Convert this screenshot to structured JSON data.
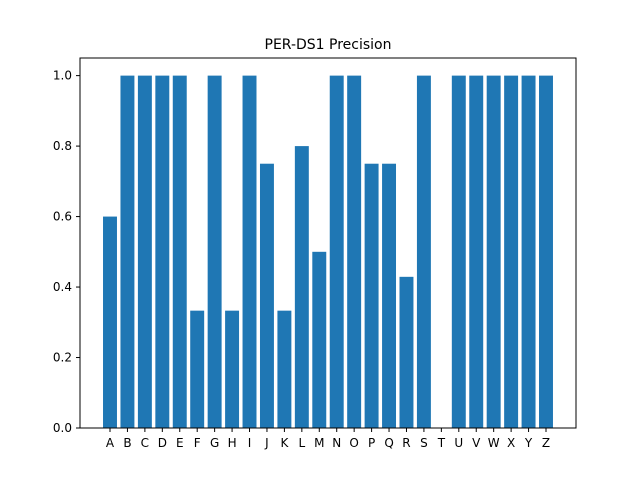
{
  "chart_data": {
    "type": "bar",
    "title": "PER-DS1 Precision",
    "xlabel": "",
    "ylabel": "",
    "categories": [
      "A",
      "B",
      "C",
      "D",
      "E",
      "F",
      "G",
      "H",
      "I",
      "J",
      "K",
      "L",
      "M",
      "N",
      "O",
      "P",
      "Q",
      "R",
      "S",
      "T",
      "U",
      "V",
      "W",
      "X",
      "Y",
      "Z"
    ],
    "values": [
      0.6,
      1.0,
      1.0,
      1.0,
      1.0,
      0.333,
      1.0,
      0.333,
      1.0,
      0.75,
      0.333,
      0.8,
      0.5,
      1.0,
      1.0,
      0.75,
      0.75,
      0.429,
      1.0,
      0.0,
      1.0,
      1.0,
      1.0,
      1.0,
      1.0,
      1.0
    ],
    "ylim": [
      0,
      1.05
    ],
    "yticks": [
      "0.0",
      "0.2",
      "0.4",
      "0.6",
      "0.8",
      "1.0"
    ],
    "grid": false,
    "bar_color": "#1f77b4"
  }
}
